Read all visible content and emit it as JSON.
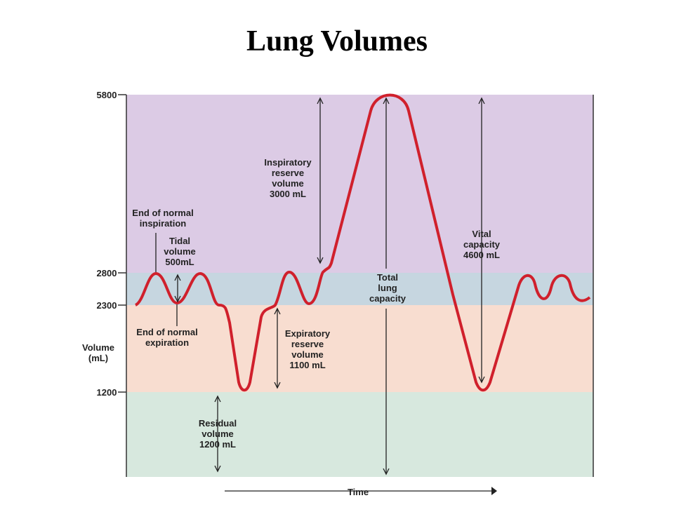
{
  "title": "Lung Volumes",
  "axis": {
    "ticks": [
      "5800",
      "2800",
      "2300",
      "1200"
    ],
    "label": [
      "Volume",
      "(mL)"
    ],
    "x_label": "Time"
  },
  "annotations": {
    "end_inspiration": [
      "End of normal",
      "inspiration"
    ],
    "tidal": [
      "Tidal",
      "volume",
      "500mL"
    ],
    "end_expiration": [
      "End of normal",
      "expiration"
    ],
    "irv": [
      "Inspiratory",
      "reserve",
      "volume",
      "3000 mL"
    ],
    "erv": [
      "Expiratory",
      "reserve",
      "volume",
      "1100 mL"
    ],
    "residual": [
      "Residual",
      "volume",
      "1200 mL"
    ],
    "tlc": [
      "Total",
      "lung",
      "capacity"
    ],
    "vc": [
      "Vital",
      "capacity",
      "4600 mL"
    ]
  }
}
